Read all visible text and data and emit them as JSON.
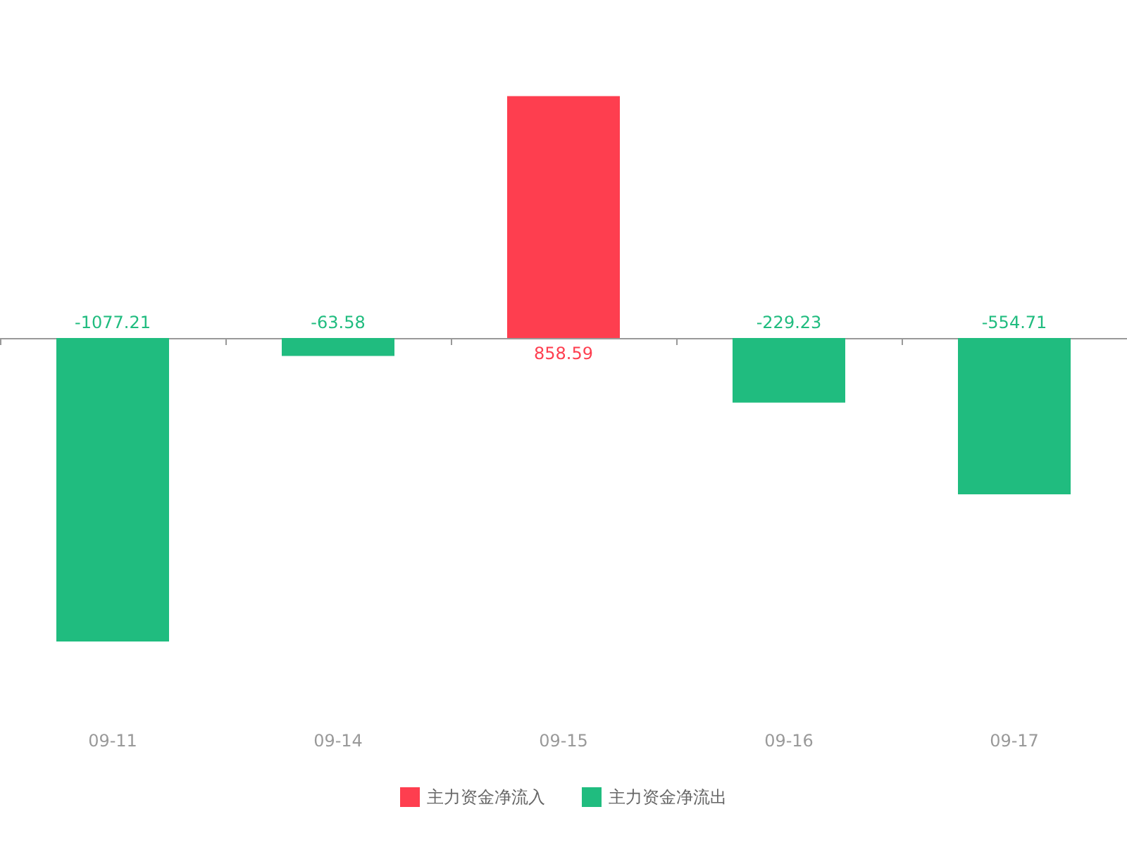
{
  "chart_data": {
    "type": "bar",
    "categories": [
      "09-11",
      "09-14",
      "09-15",
      "09-16",
      "09-17"
    ],
    "stacked": true,
    "data_labels": true,
    "legend": "bottom",
    "grid": false,
    "series": [
      {
        "name": "主力资金净流入",
        "color": "#fe3e4f",
        "values": [
          null,
          null,
          858.59,
          null,
          null
        ]
      },
      {
        "name": "主力资金净流出",
        "color": "#20bc7f",
        "values": [
          -1077.21,
          -63.58,
          null,
          -229.23,
          -554.71
        ]
      }
    ]
  }
}
